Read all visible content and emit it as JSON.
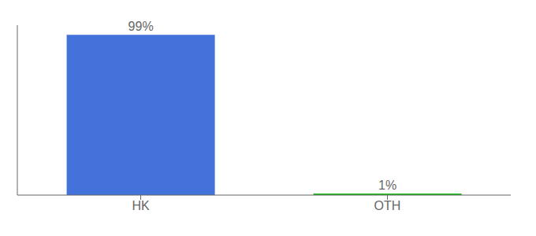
{
  "chart_data": {
    "type": "bar",
    "categories": [
      "HK",
      "OTH"
    ],
    "values": [
      99,
      1
    ],
    "value_labels": [
      "99%",
      "1%"
    ],
    "colors": [
      "#4472db",
      "#22bb22"
    ],
    "ylim": [
      0,
      105
    ],
    "data_labels": true,
    "tick_labels": "x"
  }
}
